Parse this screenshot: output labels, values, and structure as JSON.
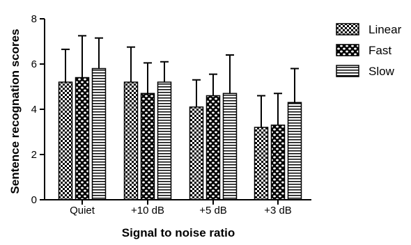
{
  "chart_data": {
    "type": "bar",
    "title": "",
    "xlabel": "Signal to noise ratio",
    "ylabel": "Sentence recognation scores",
    "categories": [
      "Quiet",
      "+10 dB",
      "+5 dB",
      "+3 dB"
    ],
    "ylim": [
      0,
      8
    ],
    "yticks": [
      0,
      2,
      4,
      6,
      8
    ],
    "grid": false,
    "legend_position": "top-right",
    "error_bars": "upper",
    "series": [
      {
        "name": "Linear",
        "pattern": "checker",
        "values": [
          5.2,
          5.2,
          4.1,
          3.2
        ],
        "errors": [
          1.45,
          1.55,
          1.2,
          1.4
        ]
      },
      {
        "name": "Fast",
        "pattern": "dots",
        "values": [
          5.4,
          4.7,
          4.6,
          3.3
        ],
        "errors": [
          1.85,
          1.35,
          0.95,
          1.4
        ]
      },
      {
        "name": "Slow",
        "pattern": "horizontal-lines",
        "values": [
          5.8,
          5.2,
          4.7,
          4.3
        ],
        "errors": [
          1.35,
          0.9,
          1.7,
          1.5
        ]
      }
    ]
  }
}
